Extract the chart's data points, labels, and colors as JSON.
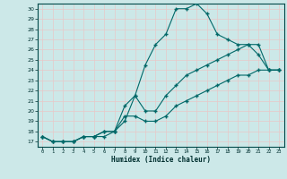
{
  "xlabel": "Humidex (Indice chaleur)",
  "ylabel": "",
  "bg_color": "#cce8e8",
  "grid_color": "#b0d8d8",
  "plot_bg_color": "#cce8e8",
  "line_color": "#006868",
  "xlim": [
    -0.5,
    23.5
  ],
  "ylim": [
    16.5,
    30.5
  ],
  "ytick_labels": [
    "17",
    "18",
    "19",
    "20",
    "21",
    "22",
    "23",
    "24",
    "25",
    "26",
    "27",
    "28",
    "29",
    "30"
  ],
  "ytick_vals": [
    17,
    18,
    19,
    20,
    21,
    22,
    23,
    24,
    25,
    26,
    27,
    28,
    29,
    30
  ],
  "xtick_vals": [
    0,
    1,
    2,
    3,
    4,
    5,
    6,
    7,
    8,
    9,
    10,
    11,
    12,
    13,
    14,
    15,
    16,
    17,
    18,
    19,
    20,
    21,
    22,
    23
  ],
  "curve1_x": [
    0,
    1,
    2,
    3,
    4,
    5,
    6,
    7,
    8,
    9,
    10,
    11,
    12,
    13,
    14,
    15,
    16,
    17,
    18,
    19,
    20,
    21,
    22,
    23
  ],
  "curve1_y": [
    17.5,
    17.0,
    17.0,
    17.0,
    17.5,
    17.5,
    17.5,
    18.0,
    19.0,
    21.5,
    24.5,
    26.5,
    27.5,
    30.0,
    30.0,
    30.5,
    29.5,
    27.5,
    27.0,
    26.5,
    26.5,
    25.5,
    24.0,
    24.0
  ],
  "curve2_x": [
    0,
    1,
    2,
    3,
    4,
    5,
    6,
    7,
    8,
    9,
    10,
    11,
    12,
    13,
    14,
    15,
    16,
    17,
    18,
    19,
    20,
    21,
    22,
    23
  ],
  "curve2_y": [
    17.5,
    17.0,
    17.0,
    17.0,
    17.5,
    17.5,
    18.0,
    18.0,
    20.5,
    21.5,
    20.0,
    20.0,
    21.5,
    22.5,
    23.5,
    24.0,
    24.5,
    25.0,
    25.5,
    26.0,
    26.5,
    26.5,
    24.0,
    24.0
  ],
  "curve3_x": [
    0,
    1,
    2,
    3,
    4,
    5,
    6,
    7,
    8,
    9,
    10,
    11,
    12,
    13,
    14,
    15,
    16,
    17,
    18,
    19,
    20,
    21,
    22,
    23
  ],
  "curve3_y": [
    17.5,
    17.0,
    17.0,
    17.0,
    17.5,
    17.5,
    18.0,
    18.0,
    19.5,
    19.5,
    19.0,
    19.0,
    19.5,
    20.5,
    21.0,
    21.5,
    22.0,
    22.5,
    23.0,
    23.5,
    23.5,
    24.0,
    24.0,
    24.0
  ]
}
